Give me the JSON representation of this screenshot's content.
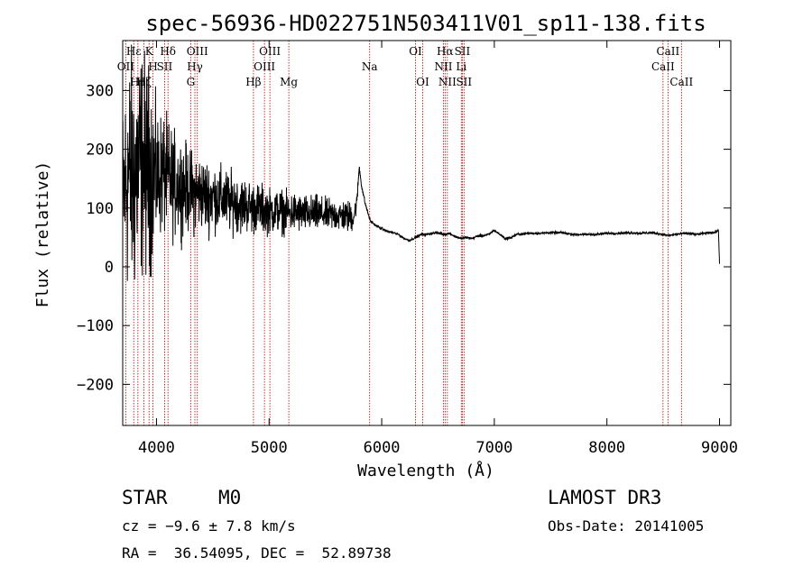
{
  "chart_data": {
    "type": "line",
    "title": "spec-56936-HD022751N503411V01_sp11-138.fits",
    "xlabel": "Wavelength (Å)",
    "ylabel": "Flux (relative)",
    "xlim": [
      3700,
      9100
    ],
    "ylim": [
      -270,
      385
    ],
    "x_ticks": [
      4000,
      5000,
      6000,
      7000,
      8000,
      9000
    ],
    "y_ticks": [
      -200,
      -100,
      0,
      100,
      200,
      300
    ],
    "grid": false,
    "spectrum": {
      "x": [
        3700,
        3750,
        3800,
        3850,
        3900,
        3950,
        4000,
        4050,
        4100,
        4150,
        4200,
        4250,
        4300,
        4350,
        4400,
        4450,
        4500,
        4550,
        4600,
        4650,
        4700,
        4750,
        4800,
        4850,
        4900,
        4950,
        5000,
        5050,
        5100,
        5150,
        5200,
        5250,
        5300,
        5350,
        5400,
        5450,
        5500,
        5550,
        5600,
        5650,
        5700,
        5750,
        5780,
        5800,
        5820,
        5850,
        5880,
        5900,
        5950,
        6000,
        6050,
        6100,
        6150,
        6200,
        6250,
        6300,
        6350,
        6400,
        6450,
        6500,
        6550,
        6600,
        6650,
        6700,
        6750,
        6800,
        6850,
        6900,
        6950,
        7000,
        7050,
        7100,
        7150,
        7200,
        7300,
        7400,
        7500,
        7600,
        7700,
        7800,
        7900,
        8000,
        8100,
        8200,
        8300,
        8400,
        8500,
        8550,
        8600,
        8700,
        8800,
        8900,
        8950,
        8990,
        9000
      ],
      "y": [
        120,
        160,
        150,
        180,
        170,
        165,
        150,
        160,
        150,
        140,
        140,
        135,
        130,
        125,
        125,
        120,
        120,
        115,
        115,
        110,
        110,
        105,
        105,
        100,
        100,
        98,
        95,
        95,
        95,
        92,
        92,
        92,
        90,
        90,
        90,
        90,
        88,
        88,
        88,
        87,
        85,
        85,
        110,
        170,
        140,
        110,
        90,
        78,
        70,
        65,
        60,
        58,
        55,
        48,
        45,
        50,
        55,
        55,
        57,
        58,
        55,
        57,
        52,
        48,
        50,
        48,
        52,
        53,
        55,
        62,
        55,
        48,
        50,
        55,
        57,
        57,
        58,
        58,
        55,
        55,
        55,
        57,
        57,
        58,
        57,
        58,
        55,
        53,
        55,
        57,
        55,
        58,
        58,
        62,
        5
      ],
      "noise_amplitude": [
        220,
        300,
        300,
        280,
        270,
        240,
        160,
        150,
        140,
        130,
        120,
        110,
        100,
        100,
        90,
        90,
        85,
        80,
        80,
        75,
        70,
        70,
        65,
        65,
        60,
        60,
        55,
        55,
        55,
        50,
        50,
        50,
        45,
        45,
        45,
        45,
        40,
        40,
        40,
        40,
        40,
        35,
        20,
        10,
        8,
        6,
        5,
        4,
        3,
        3,
        3,
        3,
        3,
        3,
        3,
        3,
        3,
        3,
        3,
        3,
        3,
        3,
        3,
        3,
        3,
        3,
        3,
        3,
        3,
        3,
        3,
        3,
        3,
        3,
        3,
        3,
        3,
        3,
        3,
        3,
        3,
        3,
        3,
        3,
        3,
        3,
        3,
        3,
        3,
        3,
        3,
        3,
        3,
        3,
        0
      ]
    },
    "line_markers": [
      {
        "wave": 3727,
        "row": 1,
        "label": "OII"
      },
      {
        "wave": 3798,
        "row": 0,
        "label": "Hε"
      },
      {
        "wave": 3835,
        "row": 2,
        "label": "Hη"
      },
      {
        "wave": 3889,
        "row": 2,
        "label": "Hζ"
      },
      {
        "wave": 3934,
        "row": 0,
        "label": "K"
      },
      {
        "wave": 3969,
        "row": 1,
        "label": "H"
      },
      {
        "wave": 4072,
        "row": 1,
        "label": "SII"
      },
      {
        "wave": 4102,
        "row": 0,
        "label": "Hδ"
      },
      {
        "wave": 4304,
        "row": 2,
        "label": "G"
      },
      {
        "wave": 4341,
        "row": 1,
        "label": "Hγ"
      },
      {
        "wave": 4363,
        "row": 0,
        "label": "OIII"
      },
      {
        "wave": 4861,
        "row": 2,
        "label": "Hβ"
      },
      {
        "wave": 4959,
        "row": 1,
        "label": "OIII"
      },
      {
        "wave": 5007,
        "row": 0,
        "label": "OIII"
      },
      {
        "wave": 5175,
        "row": 2,
        "label": "Mg"
      },
      {
        "wave": 5893,
        "row": 1,
        "label": "Na"
      },
      {
        "wave": 6300,
        "row": 0,
        "label": "OI"
      },
      {
        "wave": 6364,
        "row": 2,
        "label": "OI"
      },
      {
        "wave": 6548,
        "row": 1,
        "label": "NII"
      },
      {
        "wave": 6563,
        "row": 0,
        "label": "Hα"
      },
      {
        "wave": 6583,
        "row": 2,
        "label": "NII"
      },
      {
        "wave": 6707,
        "row": 1,
        "label": "Li"
      },
      {
        "wave": 6716,
        "row": 0,
        "label": "SII"
      },
      {
        "wave": 6731,
        "row": 2,
        "label": "SII"
      },
      {
        "wave": 8498,
        "row": 1,
        "label": "CaII"
      },
      {
        "wave": 8542,
        "row": 0,
        "label": "CaII"
      },
      {
        "wave": 8662,
        "row": 2,
        "label": "CaII"
      }
    ],
    "colors": {
      "spectrum": "#000000",
      "markers": "#b00000",
      "axes": "#000000"
    }
  },
  "info": {
    "class_label": "STAR",
    "subclass": "M0",
    "survey": "LAMOST DR3",
    "cz": "cz = −9.6 ± 7.8 km/s",
    "obs_date": "Obs-Date: 20141005",
    "coords": "RA =  36.54095, DEC =  52.89738"
  }
}
